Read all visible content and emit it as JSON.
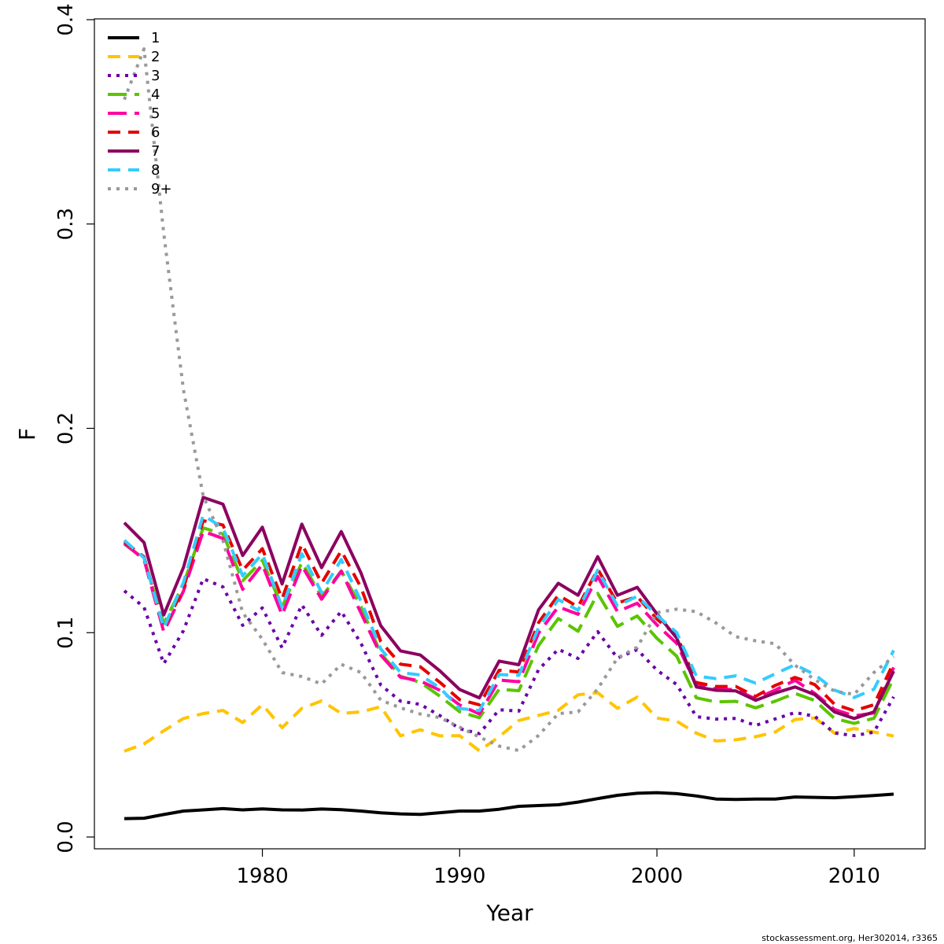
{
  "chart_data": {
    "type": "line",
    "xlabel": "Year",
    "ylabel": "F",
    "xlim": [
      1973,
      2012
    ],
    "ylim": [
      0,
      0.4
    ],
    "xticks": [
      1980,
      1990,
      2000,
      2010
    ],
    "yticks": [
      0.0,
      0.1,
      0.2,
      0.3,
      0.4
    ],
    "ytick_labels": [
      "0.0",
      "0.1",
      "0.2",
      "0.3",
      "0.4"
    ],
    "grid": false,
    "legend_position": "top-left",
    "x": [
      1973,
      1974,
      1975,
      1976,
      1977,
      1978,
      1979,
      1980,
      1981,
      1982,
      1983,
      1984,
      1985,
      1986,
      1987,
      1988,
      1989,
      1990,
      1991,
      1992,
      1993,
      1994,
      1995,
      1996,
      1997,
      1998,
      1999,
      2000,
      2001,
      2002,
      2003,
      2004,
      2005,
      2006,
      2007,
      2008,
      2009,
      2010,
      2011,
      2012
    ],
    "series": [
      {
        "name": "1",
        "color": "#000000",
        "dash": "solid",
        "values": [
          0.009,
          0.0092,
          0.011,
          0.0127,
          0.0133,
          0.0139,
          0.0133,
          0.0138,
          0.0133,
          0.0132,
          0.0137,
          0.0134,
          0.0127,
          0.0118,
          0.0113,
          0.0111,
          0.0119,
          0.0127,
          0.0127,
          0.0136,
          0.015,
          0.0154,
          0.0158,
          0.0171,
          0.0188,
          0.0204,
          0.0214,
          0.0217,
          0.0212,
          0.0201,
          0.0186,
          0.0184,
          0.0186,
          0.0186,
          0.0196,
          0.0194,
          0.0192,
          0.0197,
          0.0203,
          0.021
        ]
      },
      {
        "name": "2",
        "color": "#FFC400",
        "dash": "dash",
        "values": [
          0.042,
          0.0456,
          0.052,
          0.058,
          0.0604,
          0.062,
          0.056,
          0.0648,
          0.0535,
          0.063,
          0.0666,
          0.0605,
          0.0612,
          0.0638,
          0.0495,
          0.0525,
          0.0495,
          0.0496,
          0.0422,
          0.0491,
          0.057,
          0.0595,
          0.062,
          0.0696,
          0.0706,
          0.063,
          0.0685,
          0.0582,
          0.0567,
          0.0508,
          0.047,
          0.0476,
          0.0491,
          0.0514,
          0.0575,
          0.0583,
          0.0508,
          0.0531,
          0.0514,
          0.0494
        ]
      },
      {
        "name": "3",
        "color": "#6A00A8",
        "dash": "dot",
        "values": [
          0.1205,
          0.1124,
          0.0848,
          0.101,
          0.1264,
          0.1224,
          0.1036,
          0.1121,
          0.0926,
          0.1136,
          0.0987,
          0.1104,
          0.0948,
          0.0744,
          0.0665,
          0.0649,
          0.0594,
          0.053,
          0.0506,
          0.0623,
          0.0616,
          0.0819,
          0.0919,
          0.0874,
          0.1005,
          0.0876,
          0.0917,
          0.0817,
          0.0746,
          0.0589,
          0.0577,
          0.058,
          0.0546,
          0.0578,
          0.0609,
          0.0591,
          0.0509,
          0.0496,
          0.0513,
          0.0686
        ]
      },
      {
        "name": "4",
        "color": "#5CC400",
        "dash": "longdash",
        "values": [
          0.1434,
          0.1362,
          0.1044,
          0.1239,
          0.1513,
          0.1483,
          0.1254,
          0.1354,
          0.1126,
          0.1344,
          0.1175,
          0.1302,
          0.1126,
          0.0898,
          0.0787,
          0.0757,
          0.0689,
          0.0613,
          0.0584,
          0.0723,
          0.0716,
          0.0937,
          0.1069,
          0.1007,
          0.1192,
          0.1031,
          0.1082,
          0.0972,
          0.0885,
          0.0681,
          0.0661,
          0.0664,
          0.0632,
          0.0665,
          0.0703,
          0.0668,
          0.058,
          0.0556,
          0.0581,
          0.0777
        ]
      },
      {
        "name": "5",
        "color": "#FF00A0",
        "dash": "longdash",
        "values": [
          0.1437,
          0.1358,
          0.1004,
          0.1203,
          0.1496,
          0.1461,
          0.1212,
          0.1334,
          0.1087,
          0.1328,
          0.1164,
          0.1301,
          0.1096,
          0.089,
          0.0782,
          0.0764,
          0.0718,
          0.0646,
          0.0602,
          0.0768,
          0.076,
          0.0998,
          0.1127,
          0.109,
          0.1275,
          0.1103,
          0.1144,
          0.1038,
          0.0948,
          0.0743,
          0.0724,
          0.0721,
          0.0676,
          0.0719,
          0.0767,
          0.0703,
          0.0624,
          0.0593,
          0.0607,
          0.083
        ]
      },
      {
        "name": "6",
        "color": "#E60000",
        "dash": "dash",
        "values": [
          0.1445,
          0.1371,
          0.1022,
          0.1216,
          0.1548,
          0.1527,
          0.1306,
          0.1411,
          0.1166,
          0.1434,
          0.1242,
          0.1401,
          0.1221,
          0.0957,
          0.0846,
          0.0833,
          0.0757,
          0.0672,
          0.0647,
          0.0816,
          0.0808,
          0.1049,
          0.1184,
          0.1126,
          0.1311,
          0.1145,
          0.1177,
          0.1066,
          0.0987,
          0.0756,
          0.0737,
          0.0737,
          0.0688,
          0.0742,
          0.0781,
          0.0746,
          0.065,
          0.0618,
          0.0647,
          0.0854
        ]
      },
      {
        "name": "7",
        "color": "#8B0060",
        "dash": "solid",
        "values": [
          0.1538,
          0.1441,
          0.1087,
          0.1319,
          0.1662,
          0.1629,
          0.1378,
          0.1516,
          0.1238,
          0.1531,
          0.1318,
          0.1495,
          0.1292,
          0.1034,
          0.0911,
          0.0891,
          0.0813,
          0.0722,
          0.0681,
          0.0861,
          0.0843,
          0.1112,
          0.1242,
          0.1183,
          0.1372,
          0.1183,
          0.1222,
          0.1092,
          0.0974,
          0.0734,
          0.0718,
          0.0715,
          0.0669,
          0.0705,
          0.0734,
          0.0697,
          0.0612,
          0.058,
          0.0612,
          0.0812
        ]
      },
      {
        "name": "8",
        "color": "#33CCFF",
        "dash": "dash",
        "values": [
          0.1452,
          0.1366,
          0.1023,
          0.1246,
          0.1575,
          0.1513,
          0.1278,
          0.1385,
          0.1124,
          0.1386,
          0.1197,
          0.1358,
          0.1154,
          0.0921,
          0.0805,
          0.0793,
          0.073,
          0.0629,
          0.0619,
          0.0795,
          0.0791,
          0.1025,
          0.1162,
          0.111,
          0.1306,
          0.1131,
          0.1178,
          0.1085,
          0.1001,
          0.0788,
          0.0775,
          0.0789,
          0.0753,
          0.0799,
          0.0843,
          0.0795,
          0.0719,
          0.0683,
          0.0723,
          0.0913
        ]
      },
      {
        "name": "9+",
        "color": "#999999",
        "dash": "dot",
        "values": [
          0.3609,
          0.3857,
          0.2953,
          0.2189,
          0.1669,
          0.1452,
          0.1098,
          0.0968,
          0.0805,
          0.0785,
          0.0749,
          0.0845,
          0.0805,
          0.067,
          0.0632,
          0.0602,
          0.0584,
          0.0538,
          0.0489,
          0.0445,
          0.0423,
          0.0497,
          0.0604,
          0.0612,
          0.0725,
          0.0876,
          0.0929,
          0.1098,
          0.1115,
          0.1103,
          0.1047,
          0.098,
          0.096,
          0.0946,
          0.0841,
          0.077,
          0.0714,
          0.0698,
          0.0805,
          0.0883
        ]
      }
    ]
  },
  "footer": {
    "credit": "stockassessment.org, Her302014, r3365"
  }
}
